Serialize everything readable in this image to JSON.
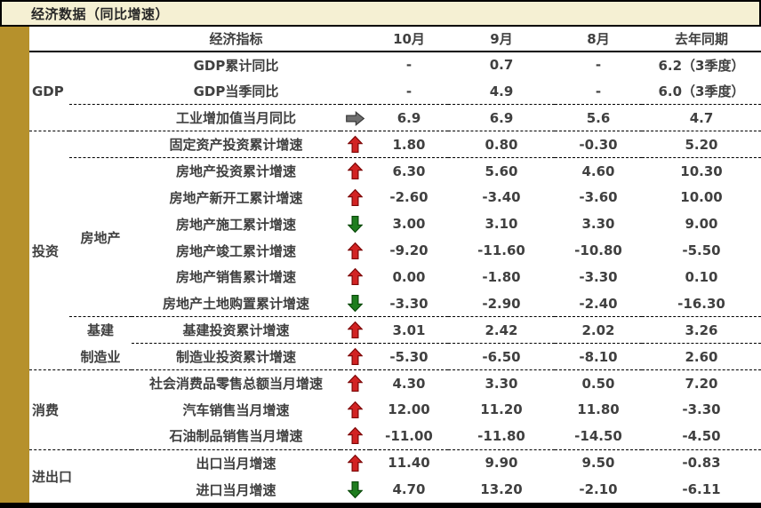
{
  "title": "经济数据（同比增速）",
  "colors": {
    "title_bg": "#F5F0D3",
    "gold_bar": "#B6912C",
    "text": "#404040",
    "arrow_up_fill": "#D22323",
    "arrow_up_stroke": "#7E0808",
    "arrow_down_fill": "#1E7D1E",
    "arrow_down_stroke": "#0A4A0A",
    "arrow_flat_fill": "#6E6E6E",
    "arrow_flat_stroke": "#3A3A3A"
  },
  "chart_data": {
    "type": "table",
    "title": "经济数据（同比增速）",
    "column_headers": {
      "indicator": "经济指标",
      "m10": "10月",
      "m9": "9月",
      "m8": "8月",
      "prev": "去年同期"
    },
    "rows": [
      {
        "category": {
          "label": "GDP",
          "rowspan": 3,
          "colspan": 1
        },
        "subcategory": {
          "label": "",
          "rowspan": 1
        },
        "indicator": "GDP累计同比",
        "trend": null,
        "values": [
          "-",
          "0.7",
          "-",
          "6.2（3季度）"
        ],
        "separator": "none"
      },
      {
        "subcategory": {
          "label": "",
          "rowspan": 1
        },
        "indicator": "GDP当季同比",
        "trend": null,
        "values": [
          "-",
          "4.9",
          "-",
          "6.0（3季度）"
        ],
        "separator": "none"
      },
      {
        "subcategory": {
          "label": "",
          "rowspan": 1
        },
        "indicator": "工业增加值当月同比",
        "trend": "flat",
        "values": [
          "6.9",
          "6.9",
          "5.6",
          "4.7"
        ],
        "separator": "sub"
      },
      {
        "category": {
          "label": "投资",
          "rowspan": 9,
          "colspan": 1
        },
        "subcategory": {
          "label": "",
          "rowspan": 1
        },
        "indicator": "固定资产投资累计增速",
        "trend": "up",
        "values": [
          "1.80",
          "0.80",
          "-0.30",
          "5.20"
        ],
        "separator": "full"
      },
      {
        "subcategory": {
          "label": "房地产",
          "rowspan": 6
        },
        "indicator": "房地产投资累计增速",
        "trend": "up",
        "values": [
          "6.30",
          "5.60",
          "4.60",
          "10.30"
        ],
        "separator": "sub"
      },
      {
        "indicator": "房地产新开工累计增速",
        "trend": "up",
        "values": [
          "-2.60",
          "-3.40",
          "-3.60",
          "10.00"
        ],
        "separator": "none"
      },
      {
        "indicator": "房地产施工累计增速",
        "trend": "down",
        "values": [
          "3.00",
          "3.10",
          "3.30",
          "9.00"
        ],
        "separator": "none"
      },
      {
        "indicator": "房地产竣工累计增速",
        "trend": "up",
        "values": [
          "-9.20",
          "-11.60",
          "-10.80",
          "-5.50"
        ],
        "separator": "none"
      },
      {
        "indicator": "房地产销售累计增速",
        "trend": "up",
        "values": [
          "0.00",
          "-1.80",
          "-3.30",
          "0.10"
        ],
        "separator": "none"
      },
      {
        "indicator": "房地产土地购置累计增速",
        "trend": "down",
        "values": [
          "-3.30",
          "-2.90",
          "-2.40",
          "-16.30"
        ],
        "separator": "none"
      },
      {
        "subcategory": {
          "label": "基建",
          "rowspan": 1
        },
        "indicator": "基建投资累计增速",
        "trend": "up",
        "values": [
          "3.01",
          "2.42",
          "2.02",
          "3.26"
        ],
        "separator": "sub"
      },
      {
        "subcategory": {
          "label": "制造业",
          "rowspan": 1
        },
        "indicator": "制造业投资累计增速",
        "trend": "up",
        "values": [
          "-5.30",
          "-6.50",
          "-8.10",
          "2.60"
        ],
        "separator": "ind"
      },
      {
        "category": {
          "label": "消费",
          "rowspan": 3,
          "colspan": 2
        },
        "indicator": "社会消费品零售总额当月增速",
        "trend": "up",
        "values": [
          "4.30",
          "3.30",
          "0.50",
          "7.20"
        ],
        "separator": "full"
      },
      {
        "indicator": "汽车销售当月增速",
        "trend": "up",
        "values": [
          "12.00",
          "11.20",
          "11.80",
          "-3.30"
        ],
        "separator": "none"
      },
      {
        "indicator": "石油制品销售当月增速",
        "trend": "up",
        "values": [
          "-11.00",
          "-11.80",
          "-14.50",
          "-4.50"
        ],
        "separator": "none"
      },
      {
        "category": {
          "label": "进出口",
          "rowspan": 2,
          "colspan": 2
        },
        "indicator": "出口当月增速",
        "trend": "up",
        "values": [
          "11.40",
          "9.90",
          "9.50",
          "-0.83"
        ],
        "separator": "full"
      },
      {
        "indicator": "进口当月增速",
        "trend": "down",
        "values": [
          "4.70",
          "13.20",
          "-2.10",
          "-6.11"
        ],
        "separator": "none"
      }
    ]
  }
}
